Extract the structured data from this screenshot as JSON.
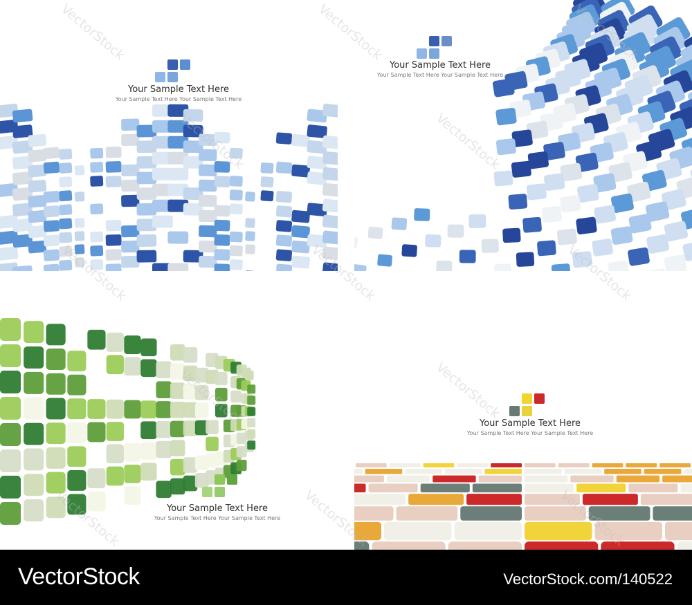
{
  "panels": [
    {
      "id": "blue-wave",
      "caption_title": "Your Sample Text Here",
      "caption_sub": "Your Sample Text Here  Your Sample Text Here",
      "logo_colors": [
        "#3a5fb0",
        "#5b8fd0",
        "#8fb6e6",
        "#7aa6dc"
      ],
      "palette": [
        "#eef3fa",
        "#dce7f4",
        "#c4d6ec",
        "#a9c8ec",
        "#5b95d5",
        "#2d54a6",
        "#d9dee4"
      ]
    },
    {
      "id": "blue-swoosh",
      "caption_title": "Your Sample Text Here",
      "caption_sub": "Your Sample Text Here  Your Sample Text Here",
      "logo_colors": [
        "#3a5fb0",
        "#6b8ec6",
        "#8fb6e6",
        "#7aa6dc"
      ],
      "palette": [
        "#f0f3f6",
        "#dde3ea",
        "#cfdff1",
        "#a9c8ec",
        "#5b9ad6",
        "#3a64b5",
        "#26469a"
      ]
    },
    {
      "id": "green",
      "caption_title": "Your Sample Text Here",
      "caption_sub": "Your Sample Text Here  Your Sample Text Here",
      "logo_colors": [
        "#8fc85a",
        "#5fa641",
        "#a9d480",
        "#9acb70"
      ],
      "palette": [
        "#f3f7e6",
        "#e3edcf",
        "#cfdcb5",
        "#9ccc5a",
        "#5e9e3a",
        "#2f7d33",
        "#d6ddc8"
      ]
    },
    {
      "id": "multicolor-floor",
      "caption_title": "Your Sample Text Here",
      "caption_sub": "Your Sample Text Here  Your Sample Text Here",
      "logo_colors": [
        "#6a7a72",
        "#f2d52e",
        "#cc2a2a",
        "#e9d23a"
      ],
      "palette": [
        "#f1f0e8",
        "#e9cfc2",
        "#f1d33a",
        "#e9a83a",
        "#cc2a2a",
        "#6b7f78"
      ]
    }
  ],
  "watermark_text": "VectorStock",
  "footer": {
    "brand": "VectorStock",
    "url": "VectorStock.com/140522"
  }
}
